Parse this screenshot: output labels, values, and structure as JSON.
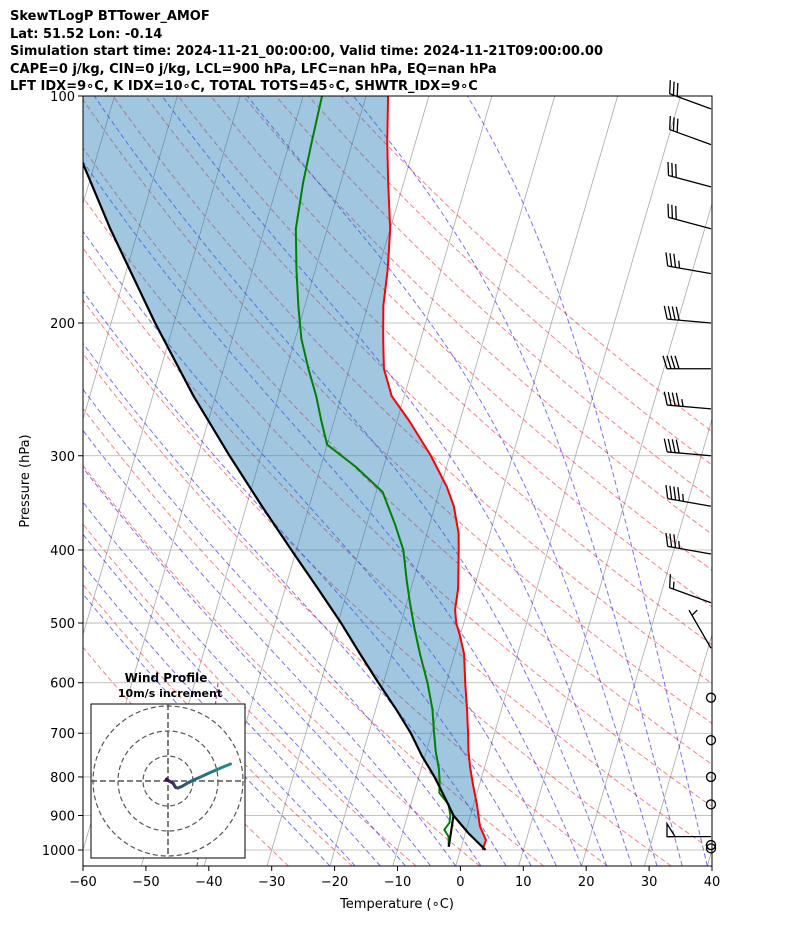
{
  "header": {
    "line1": "SkewTLogP BTTower_AMOF",
    "line2": "Lat: 51.52   Lon: -0.14",
    "line3": "Simulation start time: 2024-11-21_00:00:00, Valid time: 2024-11-21T09:00:00.00",
    "line4": "CAPE=0 j/kg, CIN=0 j/kg, LCL=900 hPa, LFC=nan hPa, EQ=nan hPa",
    "line5": "LFT IDX=9∘C, K IDX=10∘C, TOTAL TOTS=45∘C, SHWTR_IDX=9∘C"
  },
  "chart_data": {
    "type": "line",
    "skew": "skew-T log-P",
    "xlabel": "Temperature (∘C)",
    "ylabel": "Pressure (hPa)",
    "xlim": [
      -60,
      40
    ],
    "ylim": [
      1050,
      100
    ],
    "yscale": "log",
    "grid": true,
    "xticks": [
      -60,
      -50,
      -40,
      -30,
      -20,
      -10,
      0,
      10,
      20,
      30,
      40
    ],
    "xtick_labels": [
      "−60",
      "−50",
      "−40",
      "−30",
      "−20",
      "−10",
      "0",
      "10",
      "20",
      "30",
      "40"
    ],
    "yticks": [
      100,
      200,
      300,
      400,
      500,
      600,
      700,
      800,
      900,
      1000
    ],
    "yticklabels": [
      "100",
      "200",
      "300",
      "400",
      "500",
      "600",
      "700",
      "800",
      "900",
      "1000"
    ],
    "colors": {
      "temperature": "#ff0000",
      "dewpoint": "#008000",
      "parcel": "#000000",
      "cape_fill": "#1f77b4",
      "isotherm": "#aaaaaa",
      "dry_adiabat": "#ff0000",
      "moist_adiabat": "#0000ff",
      "mixing_ratio": "#800080"
    },
    "series": [
      {
        "key": "temperature",
        "points": [
          [
            1000,
            3.5
          ],
          [
            970,
            3.6
          ],
          [
            930,
            2.0
          ],
          [
            870,
            0.5
          ],
          [
            820,
            -1.0
          ],
          [
            780,
            -2.2
          ],
          [
            740,
            -3.3
          ],
          [
            700,
            -4.2
          ],
          [
            650,
            -5.5
          ],
          [
            600,
            -7.0
          ],
          [
            550,
            -8.5
          ],
          [
            520,
            -10.0
          ],
          [
            500,
            -11.2
          ],
          [
            480,
            -12.0
          ],
          [
            450,
            -12.5
          ],
          [
            400,
            -14.2
          ],
          [
            380,
            -15.0
          ],
          [
            350,
            -17.0
          ],
          [
            330,
            -19.0
          ],
          [
            300,
            -23.0
          ],
          [
            270,
            -28.0
          ],
          [
            250,
            -32.0
          ],
          [
            230,
            -34.5
          ],
          [
            210,
            -36.0
          ],
          [
            190,
            -37.5
          ],
          [
            170,
            -38.5
          ],
          [
            150,
            -40.0
          ],
          [
            130,
            -42.5
          ],
          [
            115,
            -44.5
          ],
          [
            100,
            -46.5
          ]
        ]
      },
      {
        "key": "dewpoint",
        "points": [
          [
            990,
            -2.0
          ],
          [
            960,
            -2.5
          ],
          [
            940,
            -3.5
          ],
          [
            920,
            -3.0
          ],
          [
            900,
            -3.2
          ],
          [
            870,
            -4.0
          ],
          [
            840,
            -6.0
          ],
          [
            810,
            -6.5
          ],
          [
            780,
            -7.2
          ],
          [
            740,
            -8.5
          ],
          [
            700,
            -9.6
          ],
          [
            650,
            -11.0
          ],
          [
            600,
            -13.0
          ],
          [
            550,
            -15.5
          ],
          [
            510,
            -17.5
          ],
          [
            470,
            -19.5
          ],
          [
            440,
            -21.0
          ],
          [
            400,
            -23.0
          ],
          [
            370,
            -25.5
          ],
          [
            335,
            -29.0
          ],
          [
            310,
            -34.5
          ],
          [
            290,
            -40.0
          ],
          [
            270,
            -42.0
          ],
          [
            250,
            -44.0
          ],
          [
            230,
            -46.5
          ],
          [
            210,
            -49.0
          ],
          [
            190,
            -51.0
          ],
          [
            170,
            -53.0
          ],
          [
            150,
            -55.0
          ],
          [
            130,
            -56.0
          ],
          [
            115,
            -56.5
          ],
          [
            100,
            -57.0
          ]
        ]
      },
      {
        "key": "parcel",
        "points": [
          [
            1000,
            4.0
          ],
          [
            950,
            0.5
          ],
          [
            900,
            -2.7
          ],
          [
            850,
            -5.0
          ],
          [
            800,
            -7.5
          ],
          [
            750,
            -10.5
          ],
          [
            700,
            -13.3
          ],
          [
            650,
            -16.8
          ],
          [
            600,
            -20.8
          ],
          [
            550,
            -25.0
          ],
          [
            500,
            -29.5
          ],
          [
            450,
            -34.8
          ],
          [
            400,
            -40.8
          ],
          [
            350,
            -47.5
          ],
          [
            300,
            -55.0
          ],
          [
            250,
            -63.5
          ],
          [
            200,
            -73.0
          ],
          [
            150,
            -84.5
          ],
          [
            100,
            -99.5
          ]
        ]
      },
      {
        "key": "parcel_dry",
        "points": [
          [
            990,
            -2.0
          ],
          [
            900,
            -2.7
          ]
        ]
      }
    ],
    "wind_barbs": [
      {
        "p": 995,
        "speed": 0,
        "calm": true
      },
      {
        "p": 985,
        "speed": 0,
        "calm": true
      },
      {
        "p": 960,
        "speed": 20,
        "dir": 270,
        "note": "flag"
      },
      {
        "p": 870,
        "speed": 0,
        "calm": true
      },
      {
        "p": 800,
        "speed": 0,
        "calm": true
      },
      {
        "p": 715,
        "speed": 0,
        "calm": true
      },
      {
        "p": 628,
        "speed": 0,
        "calm": true
      },
      {
        "p": 540,
        "speed": 5,
        "dir": 330
      },
      {
        "p": 470,
        "speed": 15,
        "dir": 290
      },
      {
        "p": 405,
        "speed": 35,
        "dir": 280
      },
      {
        "p": 350,
        "speed": 45,
        "dir": 280
      },
      {
        "p": 300,
        "speed": 40,
        "dir": 275
      },
      {
        "p": 260,
        "speed": 45,
        "dir": 275
      },
      {
        "p": 230,
        "speed": 40,
        "dir": 270
      },
      {
        "p": 200,
        "speed": 40,
        "dir": 275
      },
      {
        "p": 172,
        "speed": 35,
        "dir": 280
      },
      {
        "p": 150,
        "speed": 30,
        "dir": 285
      },
      {
        "p": 132,
        "speed": 30,
        "dir": 285
      },
      {
        "p": 116,
        "speed": 30,
        "dir": 290
      },
      {
        "p": 104,
        "speed": 30,
        "dir": 290
      }
    ],
    "hodograph": {
      "title": "Wind Profile",
      "subtitle": "10m/s increment",
      "rings": [
        10,
        20,
        30
      ],
      "points": [
        [
          -0.8,
          0.3
        ],
        [
          -0.5,
          0.8
        ],
        [
          0,
          0.2
        ],
        [
          0.6,
          -0.1
        ],
        [
          1.4,
          -0.5
        ],
        [
          2.2,
          -1.1
        ],
        [
          2.6,
          -1.9
        ],
        [
          3.1,
          -2.6
        ],
        [
          4.0,
          -2.8
        ],
        [
          5.5,
          -2.2
        ],
        [
          7.5,
          -1.0
        ],
        [
          10.0,
          0.3
        ],
        [
          13.0,
          1.6
        ],
        [
          16.0,
          3.0
        ],
        [
          19.0,
          4.3
        ],
        [
          22.0,
          5.6
        ],
        [
          25.0,
          6.8
        ]
      ]
    }
  }
}
